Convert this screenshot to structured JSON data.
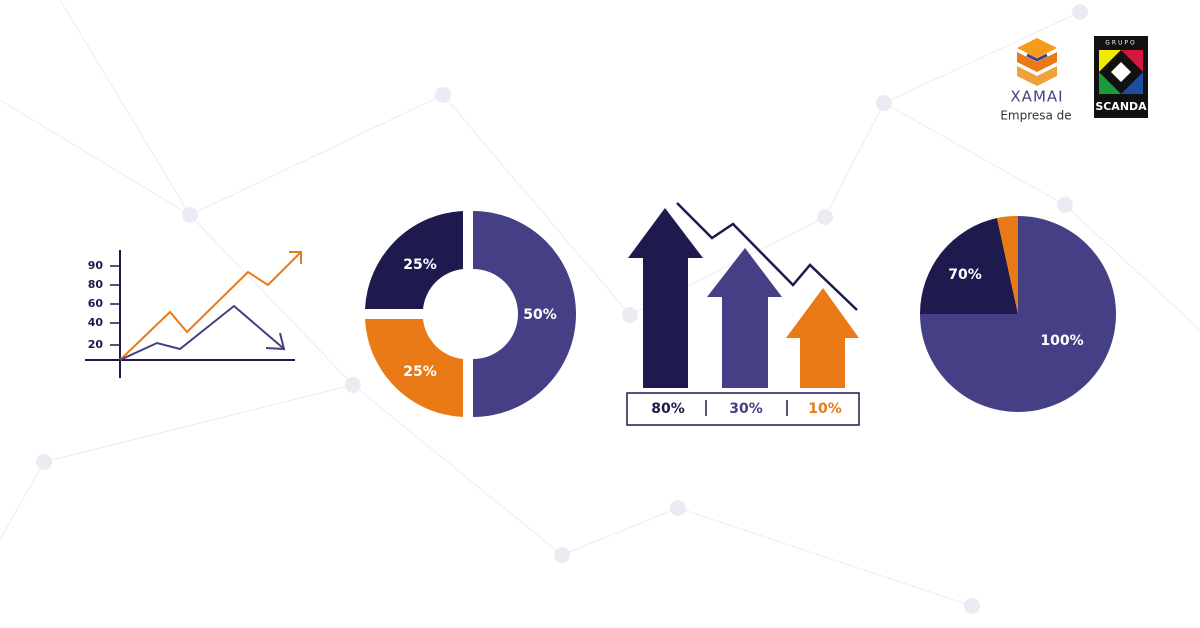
{
  "line_illustration": {
    "yticks": [
      "90",
      "80",
      "60",
      "40",
      "20"
    ]
  },
  "donut_illustration": {
    "labels": [
      "25%",
      "25%",
      "50%"
    ]
  },
  "arrows_illustration": {
    "labels": [
      "80%",
      "30%",
      "10%"
    ]
  },
  "pie_illustration": {
    "labels": [
      "70%",
      "100%"
    ]
  },
  "logos": {
    "xamai": {
      "name": "XAMAI",
      "tagline": "Empresa de"
    },
    "scanda": {
      "top": "GRUPO",
      "bottom": "SCANDA"
    }
  }
}
